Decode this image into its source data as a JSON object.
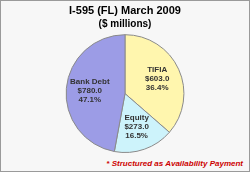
{
  "chart_data": {
    "type": "pie",
    "title": "I-595 (FL) March 2009",
    "subtitle": "($ millions)",
    "annotation": "* Structured as Availability Payment",
    "categories": [
      "TIFIA",
      "Equity",
      "Bank Debt"
    ],
    "values": [
      603.0,
      273.0,
      780.0
    ],
    "value_labels": [
      "$603.0",
      "$273.0",
      "$780.0"
    ],
    "percentages": [
      36.4,
      16.5,
      47.1
    ],
    "percentage_labels": [
      "36.4%",
      "16.5%",
      "47.1%"
    ],
    "colors": [
      "#fff6ae",
      "#cdf3fb",
      "#9c9ce6"
    ],
    "data_labels": true
  }
}
